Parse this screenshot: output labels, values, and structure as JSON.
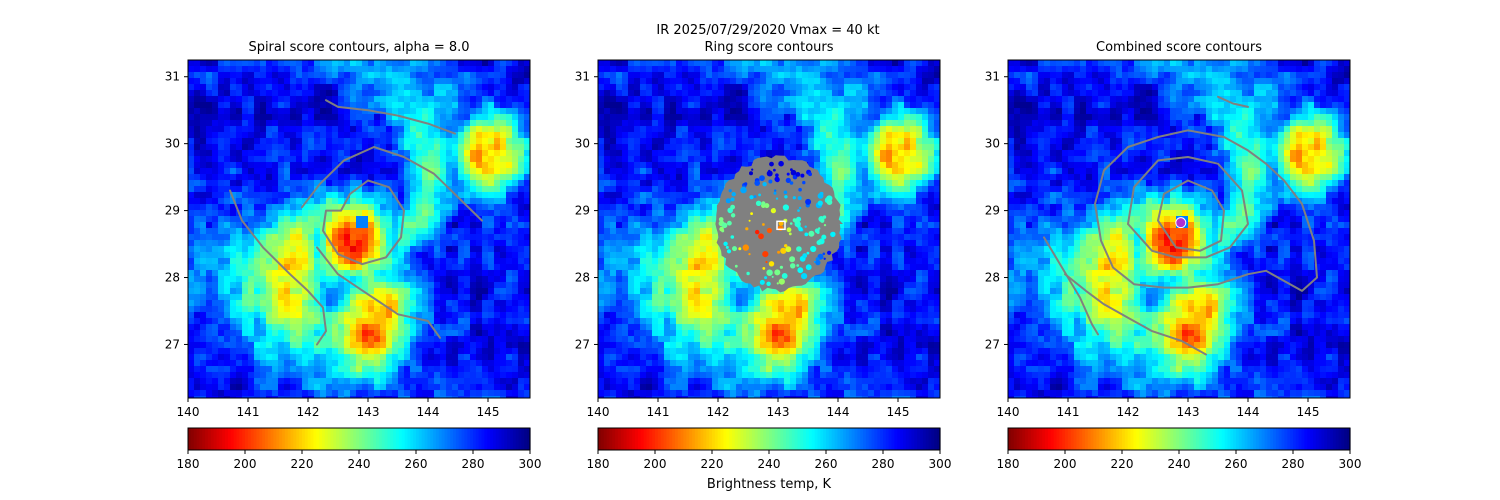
{
  "figure": {
    "suptitle": "IR  2025/07/29/2020    Vmax = 40 kt",
    "colorbar_label": "Brightness temp, K",
    "colormap": "jet_r"
  },
  "chart_data": [
    {
      "type": "heatmap",
      "title": "Spiral score contours, alpha =  8.0",
      "xlim": [
        140,
        145.7
      ],
      "ylim": [
        26.2,
        31.25
      ],
      "xticks": [
        "140",
        "141",
        "142",
        "143",
        "144",
        "145"
      ],
      "yticks": [
        "27",
        "28",
        "29",
        "30",
        "31"
      ],
      "grid": false,
      "field_features": {
        "cold_cores_K": [
          {
            "lon": 142.8,
            "lat": 28.55,
            "min": 200
          },
          {
            "lon": 145.0,
            "lat": 29.85,
            "min": 210
          },
          {
            "lon": 143.0,
            "lat": 27.1,
            "min": 205
          },
          {
            "lon": 143.2,
            "lat": 27.5,
            "min": 215
          }
        ],
        "clear_eye": {
          "lon": 142.9,
          "lat": 28.85,
          "value_K": 270
        },
        "background_K": 285
      },
      "contour_color": "#808080",
      "contours": [
        [
          [
            142.3,
            30.65
          ],
          [
            142.5,
            30.55
          ],
          [
            143.0,
            30.5
          ],
          [
            143.5,
            30.42
          ],
          [
            144.0,
            30.3
          ],
          [
            144.45,
            30.15
          ]
        ],
        [
          [
            140.7,
            29.3
          ],
          [
            140.9,
            28.85
          ],
          [
            141.25,
            28.45
          ],
          [
            141.7,
            28.05
          ],
          [
            142.0,
            27.8
          ],
          [
            142.25,
            27.55
          ],
          [
            142.3,
            27.2
          ],
          [
            142.15,
            27.0
          ]
        ],
        [
          [
            141.9,
            29.05
          ],
          [
            142.2,
            29.4
          ],
          [
            142.6,
            29.75
          ],
          [
            143.1,
            29.95
          ],
          [
            143.6,
            29.8
          ],
          [
            144.1,
            29.55
          ],
          [
            144.5,
            29.2
          ],
          [
            144.9,
            28.85
          ]
        ],
        [
          [
            142.55,
            29.0
          ],
          [
            142.7,
            29.25
          ],
          [
            143.0,
            29.45
          ],
          [
            143.35,
            29.35
          ],
          [
            143.6,
            29.0
          ],
          [
            143.55,
            28.6
          ],
          [
            143.3,
            28.3
          ],
          [
            142.9,
            28.2
          ],
          [
            142.5,
            28.35
          ],
          [
            142.25,
            28.7
          ],
          [
            142.3,
            29.0
          ],
          [
            142.55,
            29.0
          ]
        ],
        [
          [
            142.15,
            28.45
          ],
          [
            142.5,
            28.05
          ],
          [
            143.0,
            27.75
          ],
          [
            143.5,
            27.45
          ],
          [
            144.0,
            27.35
          ],
          [
            144.2,
            27.1
          ]
        ]
      ],
      "colorbar": {
        "range": [
          180,
          300
        ],
        "ticks": [
          "180",
          "200",
          "220",
          "240",
          "260",
          "280",
          "300"
        ]
      }
    },
    {
      "type": "heatmap",
      "title": "Ring score contours",
      "xlim": [
        140,
        145.7
      ],
      "ylim": [
        26.2,
        31.25
      ],
      "xticks": [
        "140",
        "141",
        "142",
        "143",
        "144",
        "145"
      ],
      "yticks": [
        "27",
        "28",
        "29",
        "30",
        "31"
      ],
      "grid": false,
      "field_features": {
        "cold_cores_K": [
          {
            "lon": 142.8,
            "lat": 28.55,
            "min": 200
          },
          {
            "lon": 145.0,
            "lat": 29.85,
            "min": 210
          },
          {
            "lon": 143.0,
            "lat": 27.1,
            "min": 205
          },
          {
            "lon": 143.2,
            "lat": 27.5,
            "min": 215
          }
        ],
        "clear_eye": {
          "lon": 142.9,
          "lat": 28.85,
          "value_K": 270
        },
        "background_K": 285
      },
      "ring_region": {
        "center": [
          143.0,
          28.8
        ],
        "radius_deg": 1.0,
        "fill": "#808080"
      },
      "marker": {
        "lon": 143.05,
        "lat": 28.78,
        "shape": "square",
        "color": "#ffffff"
      },
      "colorbar": {
        "range": [
          180,
          300
        ],
        "ticks": [
          "180",
          "200",
          "220",
          "240",
          "260",
          "280",
          "300"
        ],
        "label": "Brightness temp, K"
      }
    },
    {
      "type": "heatmap",
      "title": "Combined score contours",
      "xlim": [
        140,
        145.7
      ],
      "ylim": [
        26.2,
        31.25
      ],
      "xticks": [
        "140",
        "141",
        "142",
        "143",
        "144",
        "145"
      ],
      "yticks": [
        "27",
        "28",
        "29",
        "30",
        "31"
      ],
      "grid": false,
      "field_features": {
        "cold_cores_K": [
          {
            "lon": 142.8,
            "lat": 28.55,
            "min": 200
          },
          {
            "lon": 145.0,
            "lat": 29.85,
            "min": 210
          },
          {
            "lon": 143.0,
            "lat": 27.1,
            "min": 205
          },
          {
            "lon": 143.2,
            "lat": 27.5,
            "min": 215
          }
        ],
        "clear_eye": {
          "lon": 142.9,
          "lat": 28.85,
          "value_K": 270
        },
        "background_K": 285
      },
      "contour_color": "#808080",
      "contours": [
        [
          [
            143.5,
            30.7
          ],
          [
            143.75,
            30.6
          ],
          [
            144.0,
            30.55
          ]
        ],
        [
          [
            140.6,
            28.6
          ],
          [
            140.9,
            28.15
          ],
          [
            141.2,
            27.7
          ],
          [
            141.4,
            27.3
          ],
          [
            141.5,
            27.15
          ]
        ],
        [
          [
            140.95,
            28.05
          ],
          [
            141.3,
            27.8
          ],
          [
            141.6,
            27.6
          ],
          [
            142.0,
            27.4
          ],
          [
            142.4,
            27.2
          ],
          [
            142.9,
            27.05
          ],
          [
            143.3,
            26.85
          ]
        ],
        [
          [
            141.55,
            28.55
          ],
          [
            141.45,
            29.1
          ],
          [
            141.6,
            29.6
          ],
          [
            142.0,
            29.95
          ],
          [
            142.5,
            30.1
          ],
          [
            143.0,
            30.2
          ],
          [
            143.6,
            30.1
          ],
          [
            144.0,
            29.9
          ],
          [
            144.3,
            29.7
          ],
          [
            144.6,
            29.45
          ],
          [
            144.9,
            29.1
          ],
          [
            145.1,
            28.55
          ],
          [
            145.15,
            28.0
          ],
          [
            144.9,
            27.8
          ],
          [
            144.6,
            27.95
          ],
          [
            144.3,
            28.1
          ],
          [
            144.0,
            28.05
          ],
          [
            143.5,
            27.9
          ],
          [
            143.0,
            27.85
          ],
          [
            142.6,
            27.85
          ],
          [
            142.1,
            27.9
          ],
          [
            141.75,
            28.15
          ],
          [
            141.55,
            28.55
          ]
        ],
        [
          [
            142.0,
            28.8
          ],
          [
            142.1,
            29.35
          ],
          [
            142.5,
            29.75
          ],
          [
            143.0,
            29.8
          ],
          [
            143.5,
            29.7
          ],
          [
            143.9,
            29.3
          ],
          [
            144.0,
            28.8
          ],
          [
            143.7,
            28.45
          ],
          [
            143.3,
            28.3
          ],
          [
            142.8,
            28.3
          ],
          [
            142.4,
            28.4
          ],
          [
            142.0,
            28.8
          ]
        ],
        [
          [
            142.5,
            28.85
          ],
          [
            142.6,
            29.25
          ],
          [
            143.0,
            29.45
          ],
          [
            143.4,
            29.3
          ],
          [
            143.6,
            29.0
          ],
          [
            143.55,
            28.55
          ],
          [
            143.2,
            28.4
          ],
          [
            142.8,
            28.45
          ],
          [
            142.5,
            28.85
          ]
        ]
      ],
      "marker": {
        "lon": 142.88,
        "lat": 28.82,
        "shape": "circle",
        "color": "#b030d0"
      },
      "colorbar": {
        "range": [
          180,
          300
        ],
        "ticks": [
          "180",
          "200",
          "220",
          "240",
          "260",
          "280",
          "300"
        ]
      }
    }
  ]
}
